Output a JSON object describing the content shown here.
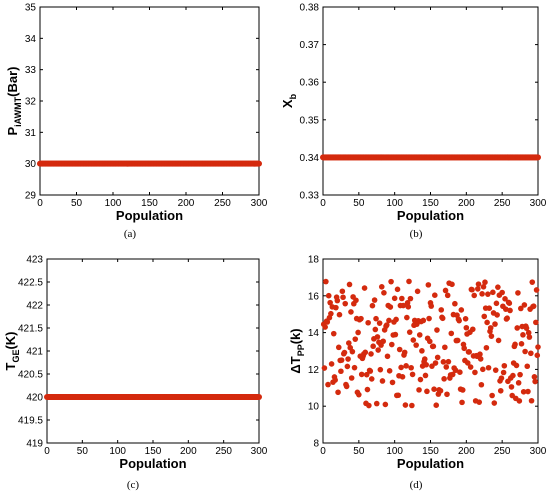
{
  "chart_data": [
    {
      "type": "scatter",
      "panel": "(a)",
      "xlabel": "Population",
      "ylabel_main": "P",
      "ylabel_sub": "iAWMT",
      "ylabel_suffix": "(Bar)",
      "xlim": [
        0,
        300
      ],
      "ylim": [
        29,
        35
      ],
      "xticks": [
        0,
        50,
        100,
        150,
        200,
        250,
        300
      ],
      "yticks": [
        29,
        30,
        31,
        32,
        33,
        34,
        35
      ],
      "ytick_labels": [
        "29",
        "30",
        "31",
        "32",
        "33",
        "34",
        "35"
      ],
      "constant": 30,
      "n_points": 301,
      "marker_color": "#d42a0e"
    },
    {
      "type": "scatter",
      "panel": "(b)",
      "xlabel": "Population",
      "ylabel_main": "X",
      "ylabel_sub": "b",
      "ylabel_suffix": "",
      "xlim": [
        0,
        300
      ],
      "ylim": [
        0.33,
        0.38
      ],
      "xticks": [
        0,
        50,
        100,
        150,
        200,
        250,
        300
      ],
      "yticks": [
        0.33,
        0.34,
        0.35,
        0.36,
        0.37,
        0.38
      ],
      "ytick_labels": [
        "0.33",
        "0.34",
        "0.35",
        "0.36",
        "0.37",
        "0.38"
      ],
      "constant": 0.34,
      "n_points": 301,
      "marker_color": "#d42a0e"
    },
    {
      "type": "scatter",
      "panel": "(c)",
      "xlabel": "Population",
      "ylabel_main": "T",
      "ylabel_sub": "GE",
      "ylabel_suffix": "(K)",
      "xlim": [
        0,
        300
      ],
      "ylim": [
        419,
        423
      ],
      "xticks": [
        0,
        50,
        100,
        150,
        200,
        250,
        300
      ],
      "yticks": [
        419,
        419.5,
        420,
        420.5,
        421,
        421.5,
        422,
        422.5,
        423
      ],
      "ytick_labels": [
        "419",
        "419.5",
        "420",
        "420.5",
        "421",
        "421.5",
        "422",
        "422.5",
        "423"
      ],
      "constant": 420,
      "n_points": 301,
      "marker_color": "#d42a0e"
    },
    {
      "type": "scatter",
      "panel": "(d)",
      "xlabel": "Population",
      "ylabel_main": "ΔT",
      "ylabel_sub": "PP",
      "ylabel_suffix": "(k)",
      "xlim": [
        0,
        300
      ],
      "ylim": [
        8,
        18
      ],
      "xticks": [
        0,
        50,
        100,
        150,
        200,
        250,
        300
      ],
      "yticks": [
        8,
        10,
        12,
        14,
        16,
        18
      ],
      "ytick_labels": [
        "8",
        "10",
        "12",
        "14",
        "16",
        "18"
      ],
      "random_range": [
        10,
        16.8
      ],
      "n_points": 300,
      "marker_color": "#d42a0e"
    }
  ]
}
